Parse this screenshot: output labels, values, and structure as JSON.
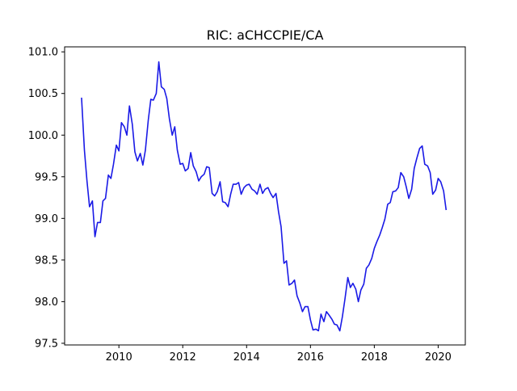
{
  "chart_data": {
    "type": "line",
    "title": "RIC: aCHCCPIE/CA",
    "xlabel": "",
    "ylabel": "",
    "xlim": [
      2008.3,
      2020.85
    ],
    "ylim": [
      97.48,
      101.06
    ],
    "xticks": [
      2010,
      2012,
      2014,
      2016,
      2018,
      2020
    ],
    "yticks": [
      97.5,
      98.0,
      98.5,
      99.0,
      99.5,
      100.0,
      100.5,
      101.0
    ],
    "xtick_labels": [
      "2010",
      "2012",
      "2014",
      "2016",
      "2018",
      "2020"
    ],
    "ytick_labels": [
      "97.5",
      "98.0",
      "98.5",
      "99.0",
      "99.5",
      "100.0",
      "100.5",
      "101.0"
    ],
    "grid": false,
    "legend": "none",
    "series": [
      {
        "color": "#1a1ae6",
        "x": [
          2008.83,
          2008.92,
          2009.0,
          2009.08,
          2009.17,
          2009.25,
          2009.33,
          2009.42,
          2009.5,
          2009.58,
          2009.67,
          2009.75,
          2009.83,
          2009.92,
          2010.0,
          2010.08,
          2010.17,
          2010.25,
          2010.33,
          2010.42,
          2010.5,
          2010.58,
          2010.67,
          2010.75,
          2010.83,
          2010.92,
          2011.0,
          2011.08,
          2011.17,
          2011.25,
          2011.33,
          2011.42,
          2011.5,
          2011.58,
          2011.67,
          2011.75,
          2011.83,
          2011.92,
          2012.0,
          2012.08,
          2012.17,
          2012.25,
          2012.33,
          2012.42,
          2012.5,
          2012.58,
          2012.67,
          2012.75,
          2012.83,
          2012.92,
          2013.0,
          2013.08,
          2013.17,
          2013.25,
          2013.33,
          2013.42,
          2013.5,
          2013.58,
          2013.67,
          2013.75,
          2013.83,
          2013.92,
          2014.0,
          2014.08,
          2014.17,
          2014.25,
          2014.33,
          2014.42,
          2014.5,
          2014.58,
          2014.67,
          2014.75,
          2014.83,
          2014.92,
          2015.0,
          2015.08,
          2015.17,
          2015.25,
          2015.33,
          2015.42,
          2015.5,
          2015.58,
          2015.67,
          2015.75,
          2015.83,
          2015.92,
          2016.0,
          2016.08,
          2016.17,
          2016.25,
          2016.33,
          2016.42,
          2016.5,
          2016.58,
          2016.67,
          2016.75,
          2016.83,
          2016.92,
          2017.0,
          2017.08,
          2017.17,
          2017.25,
          2017.33,
          2017.42,
          2017.5,
          2017.58,
          2017.67,
          2017.75,
          2017.83,
          2017.92,
          2018.0,
          2018.08,
          2018.17,
          2018.25,
          2018.33,
          2018.42,
          2018.5,
          2018.58,
          2018.67,
          2018.75,
          2018.83,
          2018.92,
          2019.0,
          2019.08,
          2019.17,
          2019.25,
          2019.33,
          2019.42,
          2019.5,
          2019.58,
          2019.67,
          2019.75,
          2019.83,
          2019.92,
          2020.0,
          2020.08,
          2020.17,
          2020.25
        ],
        "y": [
          100.45,
          99.82,
          99.45,
          99.14,
          99.21,
          98.78,
          98.95,
          98.95,
          99.21,
          99.24,
          99.52,
          99.48,
          99.65,
          99.88,
          99.81,
          100.15,
          100.1,
          100.0,
          100.35,
          100.13,
          99.8,
          99.69,
          99.78,
          99.64,
          99.82,
          100.18,
          100.43,
          100.42,
          100.5,
          100.88,
          100.58,
          100.55,
          100.44,
          100.2,
          100.0,
          100.1,
          99.82,
          99.65,
          99.66,
          99.57,
          99.6,
          99.79,
          99.63,
          99.56,
          99.45,
          99.5,
          99.53,
          99.62,
          99.61,
          99.3,
          99.27,
          99.32,
          99.44,
          99.2,
          99.19,
          99.14,
          99.29,
          99.41,
          99.41,
          99.43,
          99.29,
          99.37,
          99.4,
          99.41,
          99.35,
          99.33,
          99.29,
          99.41,
          99.3,
          99.35,
          99.37,
          99.3,
          99.25,
          99.3,
          99.08,
          98.9,
          98.46,
          98.49,
          98.2,
          98.22,
          98.26,
          98.07,
          97.98,
          97.88,
          97.94,
          97.94,
          97.78,
          97.66,
          97.67,
          97.65,
          97.85,
          97.76,
          97.88,
          97.84,
          97.79,
          97.73,
          97.72,
          97.65,
          97.82,
          98.03,
          98.29,
          98.17,
          98.22,
          98.15,
          98.0,
          98.14,
          98.21,
          98.4,
          98.44,
          98.52,
          98.64,
          98.72,
          98.8,
          98.89,
          98.99,
          99.17,
          99.19,
          99.32,
          99.33,
          99.37,
          99.55,
          99.5,
          99.38,
          99.24,
          99.35,
          99.6,
          99.72,
          99.84,
          99.87,
          99.65,
          99.63,
          99.55,
          99.29,
          99.34,
          99.48,
          99.44,
          99.33,
          99.1
        ]
      }
    ]
  }
}
